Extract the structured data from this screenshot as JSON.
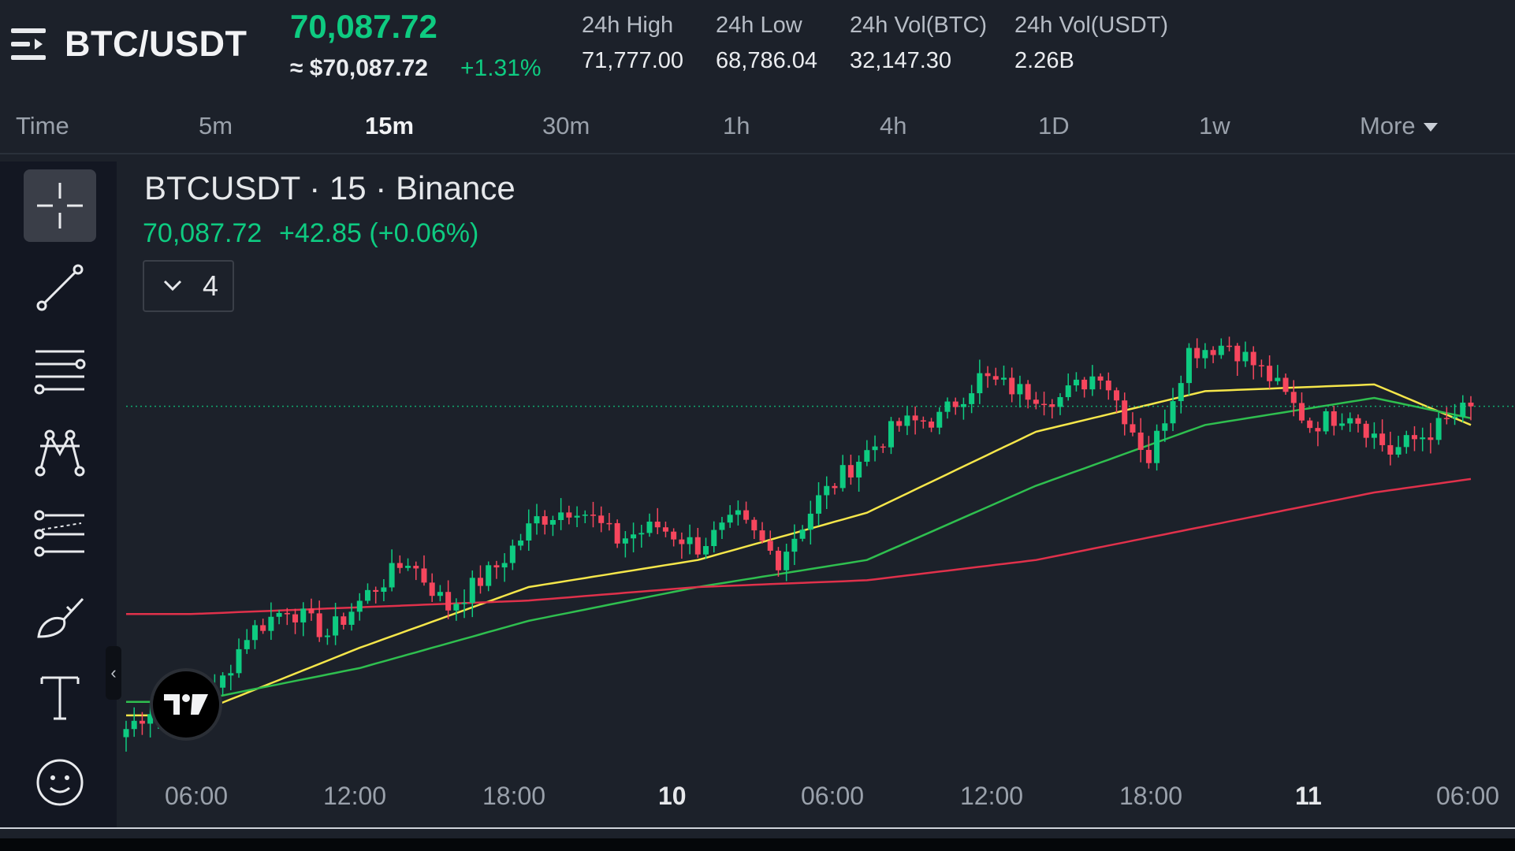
{
  "header": {
    "menu_icon": "menu-icon",
    "pair": "BTC/USDT",
    "last_price": "70,087.72",
    "usd_price": "≈ $70,087.72",
    "change_pct": "+1.31%",
    "stats": [
      {
        "label": "24h High",
        "value": "71,777.00"
      },
      {
        "label": "24h Low",
        "value": "68,786.04"
      },
      {
        "label": "24h Vol(BTC)",
        "value": "32,147.30"
      },
      {
        "label": "24h Vol(USDT)",
        "value": "2.26B"
      }
    ]
  },
  "tabs": {
    "items": [
      "Time",
      "5m",
      "15m",
      "30m",
      "1h",
      "4h",
      "1D",
      "1w"
    ],
    "active": "15m",
    "more": "More"
  },
  "toolbar": {
    "tools": [
      "crosshair-icon",
      "trend-line-icon",
      "horizontal-lines-icon",
      "pattern-icon",
      "fib-retracement-icon",
      "brush-icon",
      "text-icon",
      "emoji-icon"
    ],
    "collapse_label": "‹"
  },
  "chart": {
    "title": "BTCUSDT · 15 · Binance",
    "price": "70,087.72",
    "change": "+42.85 (+0.06%)",
    "indicator_count": "4",
    "time_labels": [
      "06:00",
      "12:00",
      "18:00",
      "10",
      "06:00",
      "12:00",
      "18:00",
      "11",
      "06:00"
    ]
  },
  "chart_data": {
    "type": "candlestick",
    "symbol": "BTCUSDT",
    "interval": "15",
    "exchange": "Binance",
    "last": 70087.72,
    "change": 42.85,
    "change_pct": 0.06,
    "x_tick_labels": [
      "06:00",
      "12:00",
      "18:00",
      "10",
      "06:00",
      "12:00",
      "18:00",
      "11",
      "06:00"
    ],
    "price_trend": [
      {
        "x": "03:30",
        "close": 67700
      },
      {
        "x": "06:00",
        "close": 67950
      },
      {
        "x": "07:30",
        "close": 67850
      },
      {
        "x": "08:30",
        "close": 68400
      },
      {
        "x": "10:00",
        "close": 68600
      },
      {
        "x": "12:00",
        "close": 68400
      },
      {
        "x": "13:30",
        "close": 68700
      },
      {
        "x": "15:00",
        "close": 68950
      },
      {
        "x": "16:30",
        "close": 68600
      },
      {
        "x": "18:00",
        "close": 68900
      },
      {
        "x": "19:00",
        "close": 69250
      },
      {
        "x": "20:30",
        "close": 69350
      },
      {
        "x": "22:00",
        "close": 69100
      },
      {
        "x": "23:30",
        "close": 69200
      },
      {
        "x": "10 01:00",
        "close": 69050
      },
      {
        "x": "10 03:00",
        "close": 69250
      },
      {
        "x": "10 05:30",
        "close": 68950
      },
      {
        "x": "10 07:30",
        "close": 69400
      },
      {
        "x": "10 09:30",
        "close": 69700
      },
      {
        "x": "10 11:00",
        "close": 69950
      },
      {
        "x": "10 12:30",
        "close": 70000
      },
      {
        "x": "10 14:30",
        "close": 70300
      },
      {
        "x": "10 15:30",
        "close": 70200
      },
      {
        "x": "10 17:00",
        "close": 70150
      },
      {
        "x": "10 18:30",
        "close": 70350
      },
      {
        "x": "10 19:00",
        "close": 69700
      },
      {
        "x": "10 20:00",
        "close": 70500
      },
      {
        "x": "10 21:30",
        "close": 70550
      },
      {
        "x": "10 23:00",
        "close": 70300
      },
      {
        "x": "11 00:30",
        "close": 69950
      },
      {
        "x": "11 02:00",
        "close": 70050
      },
      {
        "x": "11 03:30",
        "close": 69750
      },
      {
        "x": "11 05:00",
        "close": 69900
      },
      {
        "x": "11 06:00",
        "close": 70087.72
      }
    ],
    "moving_averages": [
      {
        "color": "#f5e64a",
        "values_at_ticks": [
          67800,
          68300,
          68750,
          68950,
          69300,
          69900,
          70200,
          70250,
          69950
        ]
      },
      {
        "color": "#2fbf4f",
        "values_at_ticks": [
          67900,
          68150,
          68500,
          68750,
          68950,
          69500,
          69950,
          70150,
          70000
        ]
      },
      {
        "color": "#e0314b",
        "values_at_ticks": [
          68550,
          68600,
          68650,
          68750,
          68800,
          68950,
          69200,
          69450,
          69550
        ]
      }
    ],
    "last_price_line": 70087.72,
    "colors": {
      "up": "#0ecb81",
      "down": "#f6465d"
    },
    "grid": false
  }
}
